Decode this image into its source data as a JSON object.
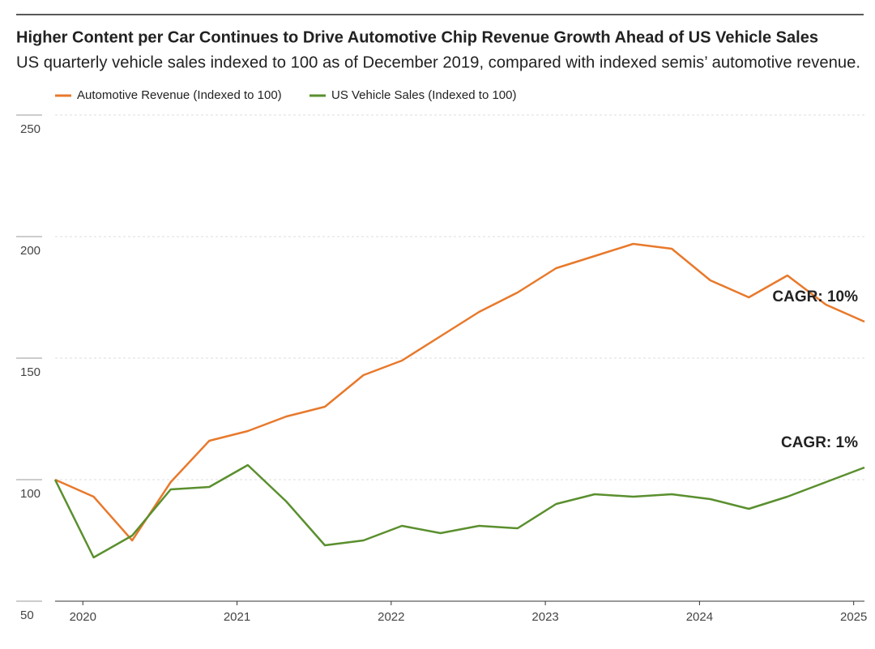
{
  "chart_data": {
    "type": "line",
    "title": "Higher Content per Car Continues to Drive Automotive Chip Revenue Growth Ahead of US Vehicle Sales",
    "subtitle": "US quarterly vehicle sales indexed to 100 as of December 2019, compared with indexed semis’ automotive revenue.",
    "x": [
      2019.82,
      2020.07,
      2020.32,
      2020.57,
      2020.82,
      2021.07,
      2021.32,
      2021.57,
      2021.82,
      2022.07,
      2022.32,
      2022.57,
      2022.82,
      2023.07,
      2023.32,
      2023.57,
      2023.82,
      2024.07,
      2024.32,
      2024.57,
      2024.82,
      2025.07
    ],
    "series": [
      {
        "name": "Automotive Revenue (Indexed to 100)",
        "color": "#e8792b",
        "values": [
          100,
          93,
          75,
          99,
          116,
          120,
          126,
          130,
          143,
          149,
          159,
          169,
          177,
          187,
          192,
          197,
          195,
          182,
          175,
          184,
          172,
          165
        ]
      },
      {
        "name": "US Vehicle Sales (Indexed to 100)",
        "color": "#5a8f2e",
        "values": [
          100,
          68,
          77,
          96,
          97,
          106,
          91,
          73,
          75,
          81,
          78,
          81,
          80,
          90,
          94,
          93,
          94,
          92,
          88,
          93,
          99,
          105
        ]
      }
    ],
    "annotations": [
      {
        "text": "CAGR: 10%",
        "color": "#e8792b",
        "y": 165
      },
      {
        "text": "CAGR: 1%",
        "color": "#5a8f2e",
        "y": 105
      }
    ],
    "xlim": [
      2019.82,
      2025.07
    ],
    "xticks": [
      2020,
      2021,
      2022,
      2023,
      2024,
      2025
    ],
    "ylim": [
      50,
      250
    ],
    "yticks": [
      50,
      100,
      150,
      200,
      250
    ],
    "grid": true
  }
}
